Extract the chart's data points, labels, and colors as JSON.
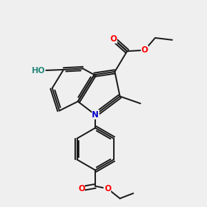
{
  "bg_color": "#efefef",
  "bond_color": "#1a1a1a",
  "bond_width": 1.5,
  "atom_colors": {
    "O": "#ff0000",
    "N": "#0000cc",
    "HO": "#2a8a7a"
  },
  "font_size_atom": 8.5
}
